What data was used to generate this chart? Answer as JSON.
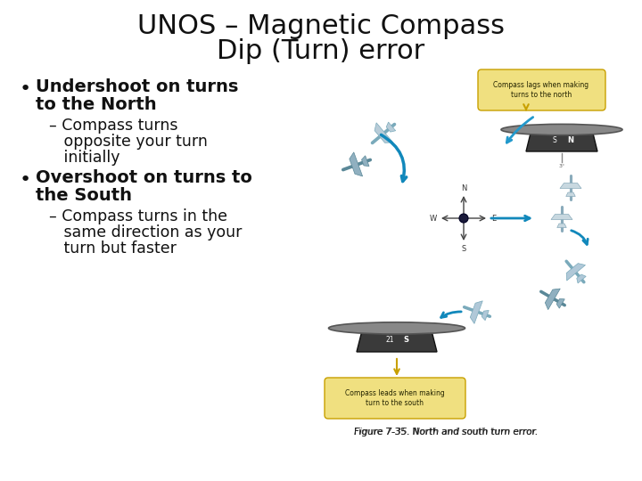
{
  "title_line1": "UNOS – Magnetic Compass",
  "title_line2": "Dip (Turn) error",
  "title_fontsize": 22,
  "title_color": "#111111",
  "background_color": "#ffffff",
  "bullet_color": "#111111",
  "bullet_fontsize": 14,
  "sub_fontsize": 12.5,
  "figure_caption": "Figure 7-35. North and south turn error.",
  "caption_fontsize": 7.5,
  "bullet1_line1": "Undershoot on turns",
  "bullet1_line2": "to the North",
  "sub1_line1": "– Compass turns",
  "sub1_line2": "   opposite your turn",
  "sub1_line3": "   initially",
  "bullet2_line1": "Overshoot on turns to",
  "bullet2_line2": "the South",
  "sub2_line1": "– Compass turns in the",
  "sub2_line2": "   same direction as your",
  "sub2_line3": "   turn but faster",
  "callout_top_text": "Compass lags when making\nturns to the north",
  "callout_bot_text": "Compass leads when making\nturn to the south"
}
